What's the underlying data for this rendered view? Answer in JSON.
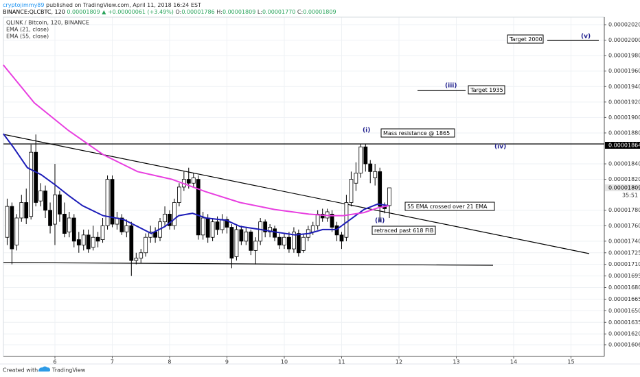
{
  "header": {
    "author": "cryptojimmy89",
    "published": " published on TradingView.com, April 11, 2018 16:24 EST",
    "symbol": "BINANCE:QLCBTC, 120",
    "last": "0.00001809",
    "change": "▲ +0.00000061 (+3.49%)",
    "ohlc": [
      {
        "label": "O:",
        "value": "0.00001786"
      },
      {
        "label": "H:",
        "value": "0.00001809"
      },
      {
        "label": "L:",
        "value": "0.00001770"
      },
      {
        "label": "C:",
        "value": "0.00001809"
      }
    ]
  },
  "footer": {
    "created": "Created with",
    "brand": "TradingView"
  },
  "chart_data": {
    "type": "candlestick",
    "title": "QLINK / Bitcoin, 120, BINANCE",
    "up_color": "#ffffff",
    "down_color": "#000000",
    "outline_color": "#000000",
    "grid": true,
    "xlim": [
      5.102,
      15.581
    ],
    "xticks": [
      6,
      7,
      8,
      9,
      10,
      11,
      12,
      13,
      14,
      15
    ],
    "ylim": [
      1.5909e-05,
      2.0298e-05
    ],
    "yticks": [
      {
        "value": 2.02e-05,
        "label": "0.00002020"
      },
      {
        "value": 2e-05,
        "label": "0.00002000"
      },
      {
        "value": 1.98e-05,
        "label": "0.00001980"
      },
      {
        "value": 1.96e-05,
        "label": "0.00001960"
      },
      {
        "value": 1.94e-05,
        "label": "0.00001940"
      },
      {
        "value": 1.92e-05,
        "label": "0.00001920"
      },
      {
        "value": 1.9e-05,
        "label": "0.00001900"
      },
      {
        "value": 1.88e-05,
        "label": "0.00001880"
      },
      {
        "value": 1.84e-05,
        "label": "0.00001840"
      },
      {
        "value": 1.82e-05,
        "label": "0.00001820"
      },
      {
        "value": 1.78e-05,
        "label": "0.00001780"
      },
      {
        "value": 1.76e-05,
        "label": "0.00001760"
      },
      {
        "value": 1.74e-05,
        "label": "0.00001740"
      },
      {
        "value": 1.725e-05,
        "label": "0.00001725"
      },
      {
        "value": 1.71e-05,
        "label": "0.00001710"
      },
      {
        "value": 1.695e-05,
        "label": "0.00001695"
      },
      {
        "value": 1.68e-05,
        "label": "0.00001680"
      },
      {
        "value": 1.665e-05,
        "label": "0.00001665"
      },
      {
        "value": 1.65e-05,
        "label": "0.00001650"
      },
      {
        "value": 1.635e-05,
        "label": "0.00001635"
      },
      {
        "value": 1.62e-05,
        "label": "0.00001620"
      },
      {
        "value": 1.606e-05,
        "label": "0.00001606"
      }
    ],
    "price_labels": [
      {
        "value": 1.864e-05,
        "label": "0.00001864"
      },
      {
        "value": 1.809e-05,
        "label": "0.00001809"
      }
    ],
    "countdown": "35:51",
    "x": [
      5.167,
      5.25,
      5.333,
      5.417,
      5.5,
      5.583,
      5.667,
      5.75,
      5.833,
      5.917,
      6,
      6.083,
      6.167,
      6.25,
      6.333,
      6.417,
      6.5,
      6.583,
      6.667,
      6.75,
      6.833,
      6.917,
      7,
      7.083,
      7.167,
      7.25,
      7.333,
      7.417,
      7.5,
      7.583,
      7.667,
      7.75,
      7.833,
      7.917,
      8,
      8.083,
      8.167,
      8.25,
      8.333,
      8.417,
      8.5,
      8.583,
      8.667,
      8.75,
      8.833,
      8.917,
      9,
      9.083,
      9.167,
      9.25,
      9.333,
      9.417,
      9.5,
      9.583,
      9.667,
      9.75,
      9.833,
      9.917,
      10,
      10.083,
      10.167,
      10.25,
      10.333,
      10.417,
      10.5,
      10.583,
      10.667,
      10.75,
      10.833,
      10.917,
      11,
      11.083,
      11.167,
      11.25,
      11.333,
      11.417,
      11.5,
      11.583,
      11.667,
      11.75,
      11.833
    ],
    "open": [
      1.745e-05,
      1.785e-05,
      1.735e-05,
      1.77e-05,
      1.79e-05,
      1.772e-05,
      1.855e-05,
      1.792e-05,
      1.805e-05,
      1.78e-05,
      1.762e-05,
      1.8e-05,
      1.775e-05,
      1.752e-05,
      1.77e-05,
      1.742e-05,
      1.735e-05,
      1.748e-05,
      1.732e-05,
      1.745e-05,
      1.742e-05,
      1.76e-05,
      1.82e-05,
      1.762e-05,
      1.77e-05,
      1.752e-05,
      1.76e-05,
      1.715e-05,
      1.718e-05,
      1.725e-05,
      1.745e-05,
      1.752e-05,
      1.745e-05,
      1.765e-05,
      1.775e-05,
      1.76e-05,
      1.79e-05,
      1.81e-05,
      1.82e-05,
      1.815e-05,
      1.82e-05,
      1.748e-05,
      1.77e-05,
      1.745e-05,
      1.765e-05,
      1.755e-05,
      1.768e-05,
      1.758e-05,
      1.72e-05,
      1.755e-05,
      1.74e-05,
      1.752e-05,
      1.728e-05,
      1.74e-05,
      1.765e-05,
      1.752e-05,
      1.756e-05,
      1.745e-05,
      1.735e-05,
      1.745e-05,
      1.73e-05,
      1.75e-05,
      1.728e-05,
      1.745e-05,
      1.752e-05,
      1.76e-05,
      1.775e-05,
      1.77e-05,
      1.775e-05,
      1.76e-05,
      1.748e-05,
      1.745e-05,
      1.79e-05,
      1.815e-05,
      1.828e-05,
      1.862e-05,
      1.84e-05,
      1.822e-05,
      1.83e-05,
      1.785e-05,
      1.786e-05
    ],
    "high": [
      1.795e-05,
      1.79e-05,
      1.775e-05,
      1.8e-05,
      1.808e-05,
      1.865e-05,
      1.878e-05,
      1.815e-05,
      1.812e-05,
      1.79e-05,
      1.84e-05,
      1.805e-05,
      1.79e-05,
      1.778e-05,
      1.775e-05,
      1.752e-05,
      1.755e-05,
      1.755e-05,
      1.76e-05,
      1.752e-05,
      1.77e-05,
      1.825e-05,
      1.825e-05,
      1.778e-05,
      1.775e-05,
      1.768e-05,
      1.765e-05,
      1.725e-05,
      1.73e-05,
      1.75e-05,
      1.76e-05,
      1.758e-05,
      1.77e-05,
      1.785e-05,
      1.78e-05,
      1.795e-05,
      1.815e-05,
      1.83e-05,
      1.835e-05,
      1.828e-05,
      1.825e-05,
      1.778e-05,
      1.775e-05,
      1.77e-05,
      1.772e-05,
      1.775e-05,
      1.772e-05,
      1.762e-05,
      1.76e-05,
      1.76e-05,
      1.758e-05,
      1.755e-05,
      1.745e-05,
      1.77e-05,
      1.768e-05,
      1.762e-05,
      1.76e-05,
      1.75e-05,
      1.75e-05,
      1.752e-05,
      1.758e-05,
      1.755e-05,
      1.75e-05,
      1.76e-05,
      1.765e-05,
      1.78e-05,
      1.782e-05,
      1.782e-05,
      1.78e-05,
      1.765e-05,
      1.752e-05,
      1.8e-05,
      1.83e-05,
      1.842e-05,
      1.866e-05,
      1.866e-05,
      1.845e-05,
      1.84e-05,
      1.835e-05,
      1.79e-05,
      1.809e-05
    ],
    "low": [
      1.735e-05,
      1.71e-05,
      1.728e-05,
      1.765e-05,
      1.762e-05,
      1.768e-05,
      1.785e-05,
      1.785e-05,
      1.77e-05,
      1.75e-05,
      1.735e-05,
      1.765e-05,
      1.745e-05,
      1.745e-05,
      1.732e-05,
      1.725e-05,
      1.728e-05,
      1.725e-05,
      1.728e-05,
      1.732e-05,
      1.738e-05,
      1.755e-05,
      1.758e-05,
      1.755e-05,
      1.748e-05,
      1.745e-05,
      1.695e-05,
      1.71e-05,
      1.712e-05,
      1.72e-05,
      1.738e-05,
      1.738e-05,
      1.74e-05,
      1.76e-05,
      1.755e-05,
      1.755e-05,
      1.785e-05,
      1.805e-05,
      1.808e-05,
      1.81e-05,
      1.742e-05,
      1.742e-05,
      1.738e-05,
      1.74e-05,
      1.748e-05,
      1.75e-05,
      1.75e-05,
      1.705e-05,
      1.715e-05,
      1.735e-05,
      1.735e-05,
      1.722e-05,
      1.71e-05,
      1.735e-05,
      1.745e-05,
      1.745e-05,
      1.74e-05,
      1.73e-05,
      1.73e-05,
      1.725e-05,
      1.725e-05,
      1.72e-05,
      1.725e-05,
      1.74e-05,
      1.748e-05,
      1.755e-05,
      1.765e-05,
      1.765e-05,
      1.752e-05,
      1.74e-05,
      1.73e-05,
      1.74e-05,
      1.785e-05,
      1.805e-05,
      1.822e-05,
      1.83e-05,
      1.815e-05,
      1.812e-05,
      1.765e-05,
      1.776e-05,
      1.77e-05
    ],
    "close": [
      1.785e-05,
      1.73e-05,
      1.77e-05,
      1.79e-05,
      1.77e-05,
      1.855e-05,
      1.79e-05,
      1.805e-05,
      1.78e-05,
      1.76e-05,
      1.8e-05,
      1.775e-05,
      1.75e-05,
      1.77e-05,
      1.74e-05,
      1.735e-05,
      1.748e-05,
      1.73e-05,
      1.745e-05,
      1.74e-05,
      1.76e-05,
      1.82e-05,
      1.762e-05,
      1.77e-05,
      1.752e-05,
      1.76e-05,
      1.715e-05,
      1.718e-05,
      1.725e-05,
      1.745e-05,
      1.752e-05,
      1.745e-05,
      1.765e-05,
      1.775e-05,
      1.76e-05,
      1.79e-05,
      1.81e-05,
      1.82e-05,
      1.815e-05,
      1.822e-05,
      1.748e-05,
      1.77e-05,
      1.745e-05,
      1.765e-05,
      1.755e-05,
      1.768e-05,
      1.758e-05,
      1.718e-05,
      1.755e-05,
      1.74e-05,
      1.752e-05,
      1.728e-05,
      1.74e-05,
      1.765e-05,
      1.752e-05,
      1.758e-05,
      1.745e-05,
      1.735e-05,
      1.745e-05,
      1.73e-05,
      1.752e-05,
      1.725e-05,
      1.745e-05,
      1.755e-05,
      1.76e-05,
      1.775e-05,
      1.77e-05,
      1.778e-05,
      1.758e-05,
      1.748e-05,
      1.74e-05,
      1.79e-05,
      1.82e-05,
      1.828e-05,
      1.862e-05,
      1.84e-05,
      1.83e-05,
      1.83e-05,
      1.785e-05,
      1.782e-05,
      1.809e-05
    ],
    "series": [
      {
        "name": "EMA (21, close)",
        "color": "#1c1cb8",
        "x": [
          5.1,
          5.28,
          5.52,
          5.76,
          6.0,
          6.24,
          6.48,
          6.84,
          7.2,
          7.44,
          7.68,
          7.92,
          8.16,
          8.4,
          8.63,
          8.99,
          9.23,
          9.59,
          9.83,
          10.19,
          10.43,
          10.67,
          10.91,
          11.15,
          11.39,
          11.63,
          11.82
        ],
        "values": [
          1.879e-05,
          1.861e-05,
          1.835e-05,
          1.826e-05,
          1.813e-05,
          1.799e-05,
          1.786e-05,
          1.773e-05,
          1.768e-05,
          1.759e-05,
          1.75e-05,
          1.759e-05,
          1.773e-05,
          1.776e-05,
          1.77e-05,
          1.767e-05,
          1.759e-05,
          1.755e-05,
          1.752e-05,
          1.748e-05,
          1.75e-05,
          1.755e-05,
          1.755e-05,
          1.768e-05,
          1.781e-05,
          1.788e-05,
          1.786e-05
        ]
      },
      {
        "name": "EMA (55, close)",
        "color": "#e83fe0",
        "x": [
          5.1,
          5.64,
          6.24,
          6.84,
          7.44,
          8.04,
          8.63,
          9.23,
          9.83,
          10.43,
          10.79,
          11.03,
          11.39,
          11.63,
          11.82
        ],
        "values": [
          1.968e-05,
          1.919e-05,
          1.883e-05,
          1.852e-05,
          1.83e-05,
          1.82e-05,
          1.804e-05,
          1.79e-05,
          1.781e-05,
          1.775e-05,
          1.773e-05,
          1.773e-05,
          1.777e-05,
          1.783e-05,
          1.786e-05
        ]
      }
    ],
    "annotations": [
      "Target 2000",
      "(v)",
      "(iii)",
      "Target 1935",
      "(i)",
      "Mass resistance @ 1865",
      "(iv)",
      "55 EMA crossed over 21 EMA",
      "(ii)",
      "retraced past 618 FIB"
    ]
  }
}
